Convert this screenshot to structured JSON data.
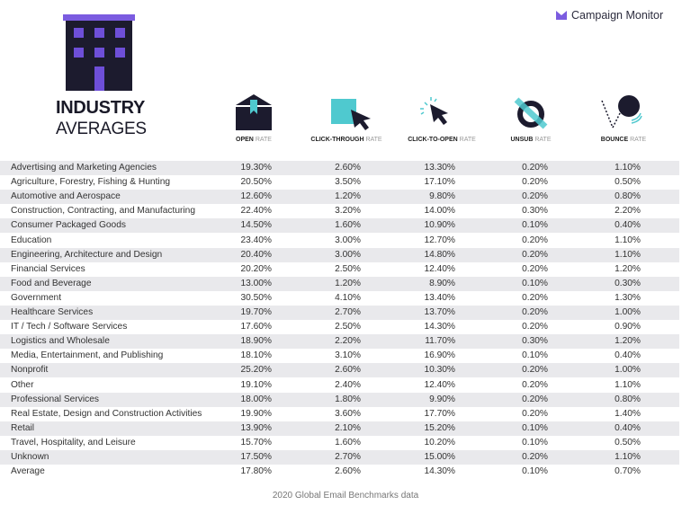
{
  "brand": {
    "name": "Campaign Monitor",
    "color": "#7b5ce0"
  },
  "title": {
    "line1": "INDUSTRY",
    "line2": "AVERAGES"
  },
  "colors": {
    "accent_purple": "#7b5ce0",
    "dark_navy": "#1c1b2e",
    "teal": "#4fc9cf",
    "row_shade": "#e9e9ec"
  },
  "columns": [
    {
      "bold": "OPEN",
      "light": "RATE",
      "icon": "envelope-open-icon"
    },
    {
      "bold": "CLICK-THROUGH",
      "light": "RATE",
      "icon": "click-through-icon"
    },
    {
      "bold": "CLICK-TO-OPEN",
      "light": "RATE",
      "icon": "cursor-click-icon"
    },
    {
      "bold": "UNSUB",
      "light": "RATE",
      "icon": "unsubscribe-icon"
    },
    {
      "bold": "BOUNCE",
      "light": "RATE",
      "icon": "bounce-ball-icon"
    }
  ],
  "rows": [
    {
      "name": "Advertising and Marketing Agencies",
      "values": [
        "19.30%",
        "2.60%",
        "13.30%",
        "0.20%",
        "1.10%"
      ]
    },
    {
      "name": "Agriculture, Forestry, Fishing & Hunting",
      "values": [
        "20.50%",
        "3.50%",
        "17.10%",
        "0.20%",
        "0.50%"
      ]
    },
    {
      "name": "Automotive and Aerospace",
      "values": [
        "12.60%",
        "1.20%",
        "9.80%",
        "0.20%",
        "0.80%"
      ]
    },
    {
      "name": "Construction, Contracting, and Manufacturing",
      "values": [
        "22.40%",
        "3.20%",
        "14.00%",
        "0.30%",
        "2.20%"
      ]
    },
    {
      "name": "Consumer Packaged Goods",
      "values": [
        "14.50%",
        "1.60%",
        "10.90%",
        "0.10%",
        "0.40%"
      ]
    },
    {
      "name": "Education",
      "values": [
        "23.40%",
        "3.00%",
        "12.70%",
        "0.20%",
        "1.10%"
      ]
    },
    {
      "name": "Engineering, Architecture and Design",
      "values": [
        "20.40%",
        "3.00%",
        "14.80%",
        "0.20%",
        "1.10%"
      ]
    },
    {
      "name": "Financial Services",
      "values": [
        "20.20%",
        "2.50%",
        "12.40%",
        "0.20%",
        "1.20%"
      ]
    },
    {
      "name": "Food and Beverage",
      "values": [
        "13.00%",
        "1.20%",
        "8.90%",
        "0.10%",
        "0.30%"
      ]
    },
    {
      "name": "Government",
      "values": [
        "30.50%",
        "4.10%",
        "13.40%",
        "0.20%",
        "1.30%"
      ]
    },
    {
      "name": "Healthcare Services",
      "values": [
        "19.70%",
        "2.70%",
        "13.70%",
        "0.20%",
        "1.00%"
      ]
    },
    {
      "name": "IT / Tech / Software Services",
      "values": [
        "17.60%",
        "2.50%",
        "14.30%",
        "0.20%",
        "0.90%"
      ]
    },
    {
      "name": "Logistics and Wholesale",
      "values": [
        "18.90%",
        "2.20%",
        "11.70%",
        "0.30%",
        "1.20%"
      ]
    },
    {
      "name": "Media, Entertainment, and Publishing",
      "values": [
        "18.10%",
        "3.10%",
        "16.90%",
        "0.10%",
        "0.40%"
      ]
    },
    {
      "name": "Nonprofit",
      "values": [
        "25.20%",
        "2.60%",
        "10.30%",
        "0.20%",
        "1.00%"
      ]
    },
    {
      "name": "Other",
      "values": [
        "19.10%",
        "2.40%",
        "12.40%",
        "0.20%",
        "1.10%"
      ]
    },
    {
      "name": "Professional Services",
      "values": [
        "18.00%",
        "1.80%",
        "9.90%",
        "0.20%",
        "0.80%"
      ]
    },
    {
      "name": "Real Estate, Design and Construction Activities",
      "values": [
        "19.90%",
        "3.60%",
        "17.70%",
        "0.20%",
        "1.40%"
      ]
    },
    {
      "name": "Retail",
      "values": [
        "13.90%",
        "2.10%",
        "15.20%",
        "0.10%",
        "0.40%"
      ]
    },
    {
      "name": "Travel, Hospitality, and Leisure",
      "values": [
        "15.70%",
        "1.60%",
        "10.20%",
        "0.10%",
        "0.50%"
      ]
    },
    {
      "name": "Unknown",
      "values": [
        "17.50%",
        "2.70%",
        "15.00%",
        "0.20%",
        "1.10%"
      ]
    },
    {
      "name": "Average",
      "values": [
        "17.80%",
        "2.60%",
        "14.30%",
        "0.10%",
        "0.70%"
      ]
    }
  ],
  "footer": "2020 Global Email Benchmarks data"
}
